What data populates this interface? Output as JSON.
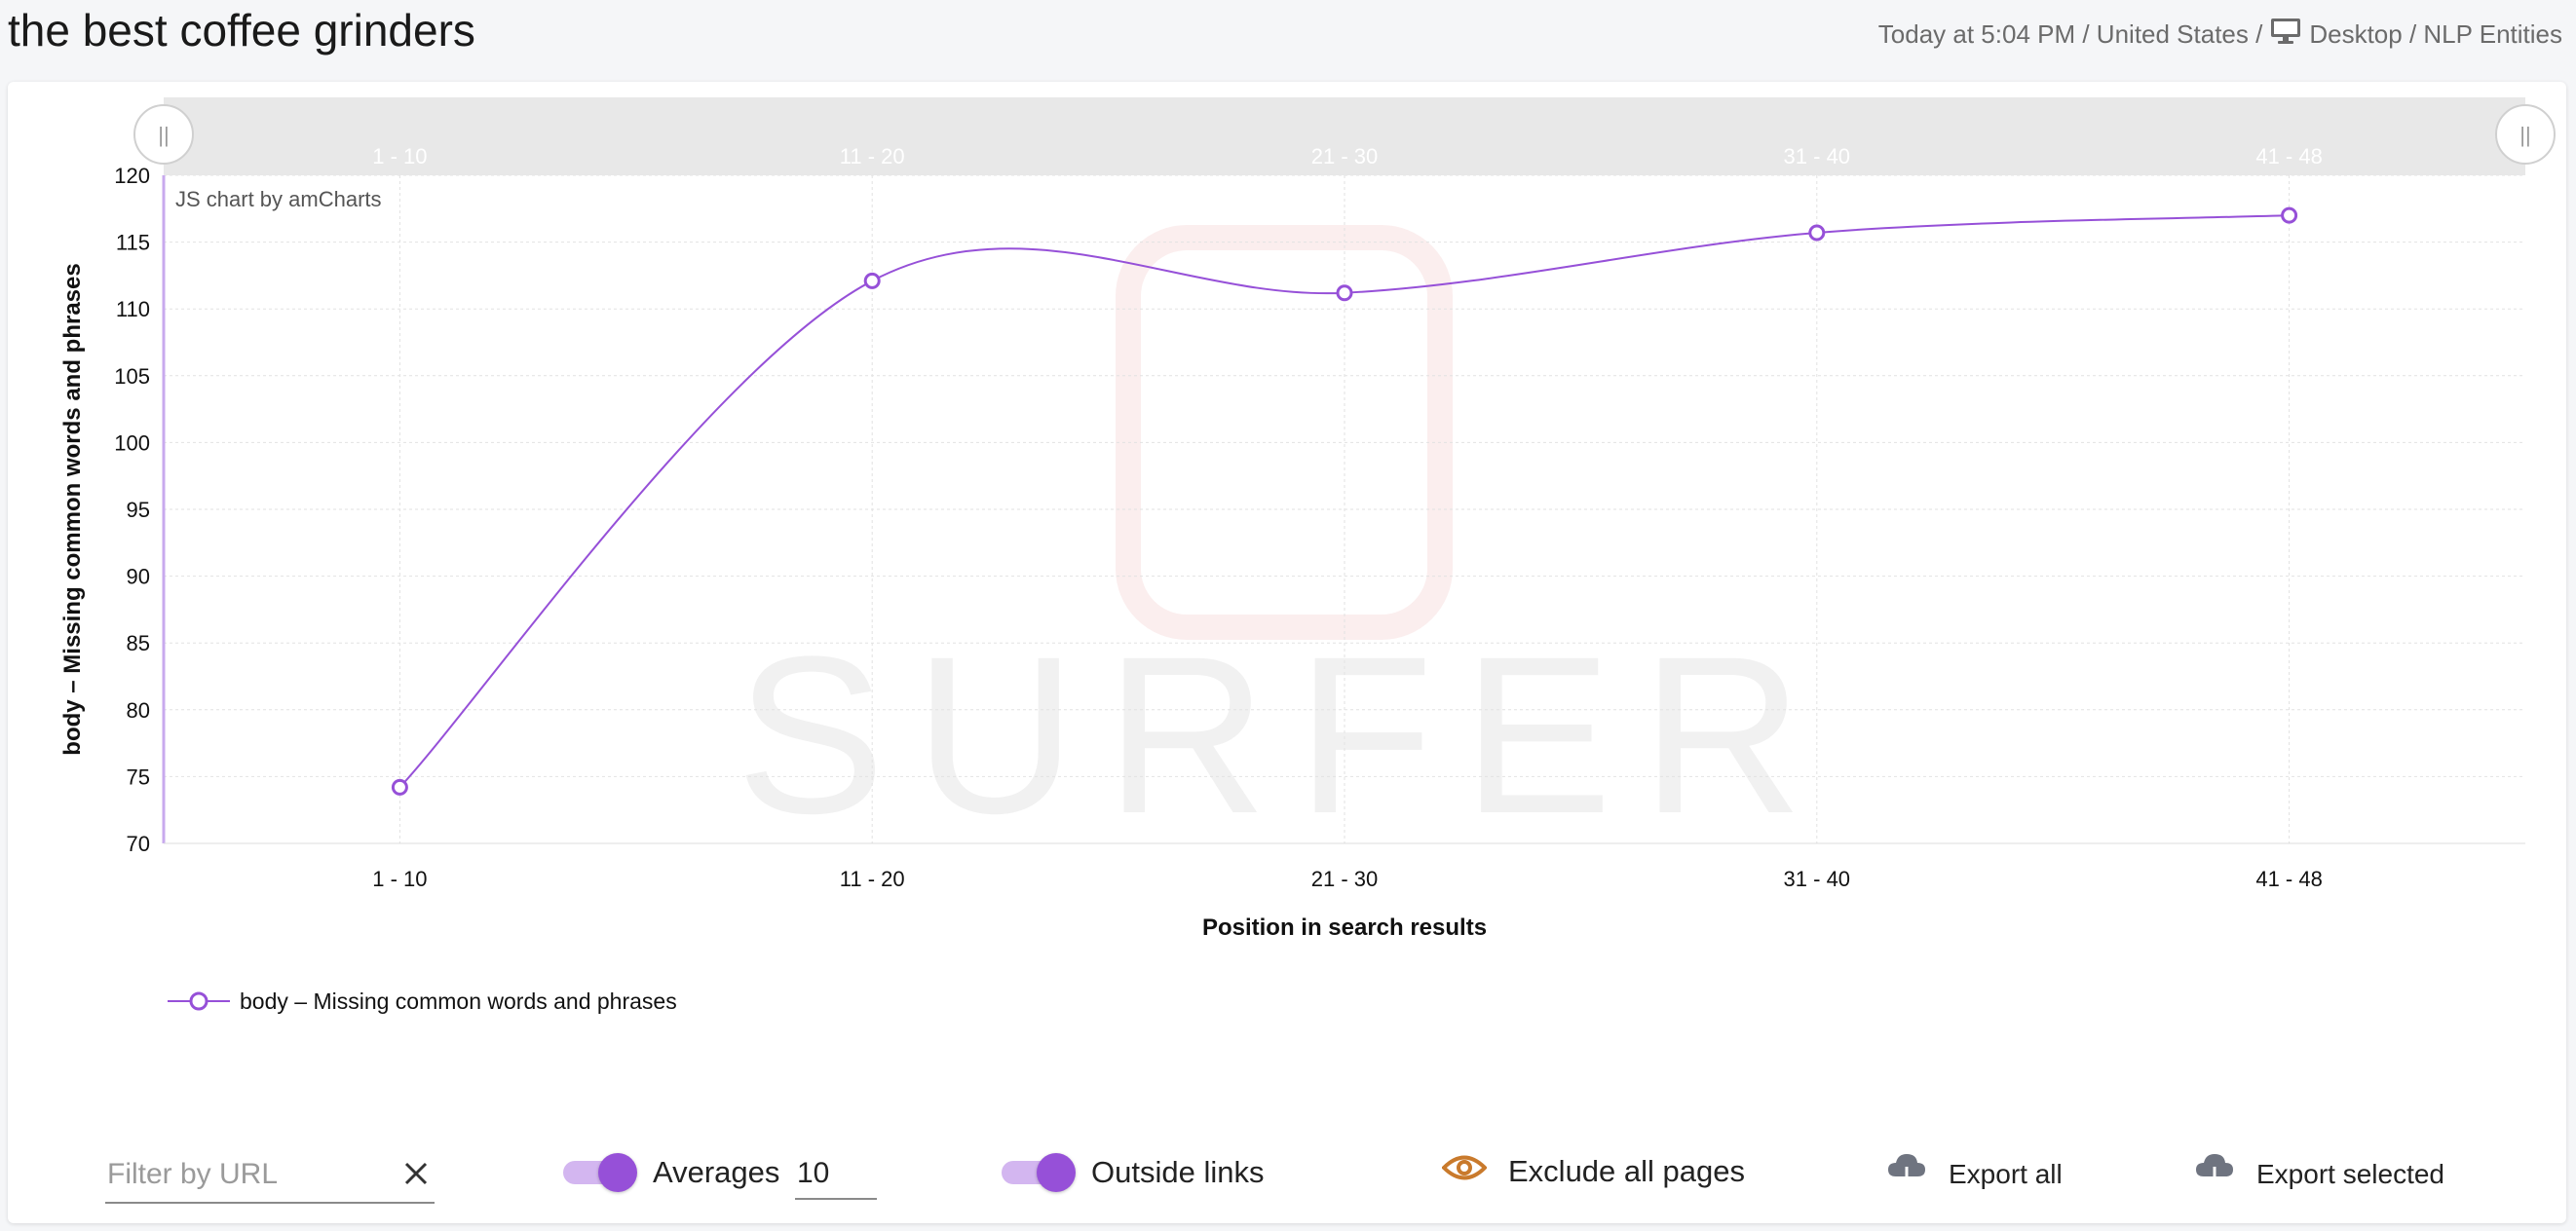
{
  "page": {
    "title": "the best coffee grinders",
    "meta_prefix": "Today at 5:04 PM / United States /",
    "meta_suffix": "Desktop / NLP Entities",
    "monitor_icon": "monitor-icon"
  },
  "chart_data": {
    "type": "line",
    "categories": [
      "1 - 10",
      "11 - 20",
      "21 - 30",
      "31 - 40",
      "41 - 48"
    ],
    "series": [
      {
        "name": "body – Missing common words and phrases",
        "values": [
          74.2,
          112.1,
          111.2,
          115.7,
          117.0
        ],
        "color": "#9650d8"
      }
    ],
    "xlabel": "Position in search results",
    "ylabel": "body – Missing common words and phrases",
    "ylim": [
      70,
      120
    ],
    "yticks": [
      "70",
      "75",
      "80",
      "85",
      "90",
      "95",
      "100",
      "105",
      "110",
      "115",
      "120"
    ],
    "grid": true,
    "legend_position": "bottom-left",
    "credit": "JS chart by amCharts",
    "watermark": "SURFER",
    "scrollbar_labels": [
      "1 - 10",
      "11 - 20",
      "21 - 30",
      "31 - 40",
      "41 - 48"
    ],
    "scrollbar_grip": "||"
  },
  "toolbar": {
    "filter_placeholder": "Filter by URL",
    "filter_value": "",
    "averages_label": "Averages",
    "averages_value": "10",
    "outside_links_label": "Outside links",
    "exclude_label": "Exclude all pages",
    "export_all_label": "Export all",
    "export_selected_label": "Export selected",
    "accent": "#9650d8",
    "eye_color": "#c97a2c"
  }
}
